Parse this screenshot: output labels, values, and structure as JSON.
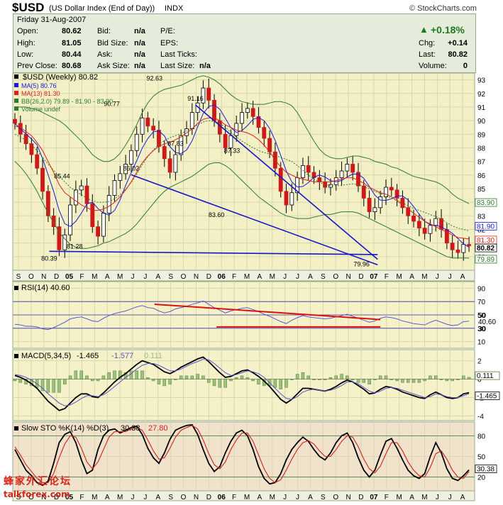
{
  "header": {
    "symbol": "$USD",
    "name": "(US Dollar Index (End of Day))",
    "exchange": "INDX",
    "source": "© StockCharts.com"
  },
  "quote": {
    "date": "Friday   31-Aug-2007",
    "open_label": "Open:",
    "open": "80.62",
    "high_label": "High:",
    "high": "81.05",
    "low_label": "Low:",
    "low": "80.44",
    "prev_label": "Prev Close:",
    "prev": "80.68",
    "bid_label": "Bid:",
    "bid": "n/a",
    "bidsize_label": "Bid Size:",
    "bidsize": "n/a",
    "ask_label": "Ask:",
    "ask": "n/a",
    "asksize_label": "Ask Size:",
    "asksize": "n/a",
    "pe_label": "P/E:",
    "eps_label": "EPS:",
    "lastticks_label": "Last Ticks:",
    "lastsize_label": "Last Size:",
    "lastsize": "n/a",
    "pct": "+0.18%",
    "chg_label": "Chg:",
    "chg": "+0.14",
    "last_label": "Last:",
    "last": "80.82",
    "volume_label": "Volume:",
    "volume": "0"
  },
  "colors": {
    "panel_bg": "#f5f1c8",
    "price_bg": "#f2f0c4",
    "sto_bg": "#f1e2cc",
    "trendline": "#1717c8",
    "resistance": "#e01010",
    "ma5": "#1a1adc",
    "ma13": "#e02020",
    "bb": "#2f7a2f"
  },
  "chart_data": [
    {
      "type": "line",
      "panel": "price",
      "legend": [
        {
          "name": "$USD (Weekly) 80.82",
          "color": "#000000"
        },
        {
          "name": "MA(5) 80.76",
          "color": "#1a1adc"
        },
        {
          "name": "MA(13) 81.30",
          "color": "#e02020"
        },
        {
          "name": "BB(26,2.0) 79.89 - 81.90 - 83.90",
          "color": "#2f7a2f"
        },
        {
          "name": "Volume undef",
          "color": "#2f7a2f"
        }
      ],
      "ylim": [
        79.0,
        93.5
      ],
      "y_ticks": [
        80,
        81,
        82,
        83,
        84,
        85,
        86,
        87,
        88,
        89,
        90,
        91,
        92,
        93
      ],
      "x_ticks": [
        "S",
        "O",
        "N",
        "D",
        "05",
        "F",
        "M",
        "A",
        "M",
        "J",
        "J",
        "A",
        "S",
        "O",
        "N",
        "D",
        "06",
        "F",
        "M",
        "A",
        "M",
        "J",
        "J",
        "A",
        "S",
        "O",
        "N",
        "D",
        "07",
        "F",
        "M",
        "A",
        "M",
        "J",
        "J",
        "A"
      ],
      "annotations": [
        {
          "label": "80.39",
          "t": 6.2,
          "v": 80.39
        },
        {
          "label": "85.44",
          "t": 8.5,
          "v": 85.44
        },
        {
          "label": "81.28",
          "t": 10.8,
          "v": 81.28
        },
        {
          "label": "90.77",
          "t": 17.5,
          "v": 90.77
        },
        {
          "label": "86.02",
          "t": 21.0,
          "v": 86.02
        },
        {
          "label": "92.63",
          "t": 25.2,
          "v": 92.63
        },
        {
          "label": "87.83",
          "t": 29.0,
          "v": 87.83
        },
        {
          "label": "91.16",
          "t": 32.6,
          "v": 91.16
        },
        {
          "label": "83.60",
          "t": 36.4,
          "v": 83.6
        },
        {
          "label": "87.33",
          "t": 39.2,
          "v": 87.33
        },
        {
          "label": "79.96",
          "t": 62.6,
          "v": 79.96
        }
      ],
      "right_labels": [
        "83.90",
        "81.90",
        "81.30",
        "80.82",
        "79.89"
      ],
      "close": [
        89.8,
        89.0,
        88.3,
        87.5,
        86.5,
        84.8,
        83.0,
        82.2,
        80.5,
        81.6,
        83.8,
        84.9,
        85.2,
        83.9,
        82.2,
        81.5,
        83.2,
        84.5,
        85.6,
        86.1,
        86.8,
        87.8,
        89.0,
        90.2,
        89.6,
        89.3,
        88.1,
        87.2,
        86.2,
        87.5,
        88.9,
        89.4,
        90.6,
        91.3,
        92.4,
        91.5,
        90.0,
        89.0,
        88.0,
        88.9,
        89.8,
        90.6,
        90.9,
        90.3,
        89.5,
        88.7,
        87.7,
        86.5,
        84.8,
        83.8,
        84.7,
        85.8,
        86.7,
        86.2,
        85.8,
        85.5,
        85.1,
        85.3,
        85.8,
        86.3,
        86.8,
        86.2,
        85.2,
        84.3,
        83.3,
        83.6,
        84.4,
        85.1,
        84.9,
        84.3,
        83.6,
        83.0,
        82.6,
        82.1,
        81.7,
        82.3,
        82.8,
        82.0,
        81.0,
        80.5,
        80.3,
        80.9,
        80.8
      ],
      "ma13": [
        89.6,
        89.5,
        89.2,
        88.9,
        88.4,
        87.8,
        87.0,
        86.2,
        85.3,
        84.7,
        84.4,
        84.1,
        83.8,
        83.6,
        83.4,
        83.4,
        83.5,
        83.7,
        84.0,
        84.4,
        84.9,
        85.5,
        86.2,
        86.9,
        87.4,
        87.8,
        88.1,
        88.3,
        88.4,
        88.6,
        88.8,
        89.1,
        89.4,
        89.8,
        90.1,
        90.2,
        90.2,
        90.0,
        89.7,
        89.5,
        89.3,
        89.2,
        89.1,
        88.9,
        88.6,
        88.2,
        87.7,
        87.1,
        86.6,
        86.2,
        86.0,
        85.8,
        85.7,
        85.6,
        85.5,
        85.5,
        85.5,
        85.5,
        85.6,
        85.7,
        85.8,
        85.8,
        85.6,
        85.4,
        85.1,
        84.9,
        84.7,
        84.6,
        84.4,
        84.1,
        83.8,
        83.5,
        83.2,
        82.9,
        82.6,
        82.4,
        82.2,
        82.0,
        81.8,
        81.6,
        81.4,
        81.35,
        81.3
      ],
      "bb_upper": [
        91.0,
        91.0,
        91.0,
        90.9,
        90.8,
        90.6,
        90.4,
        90.2,
        90.0,
        89.7,
        89.3,
        88.9,
        88.5,
        88.0,
        87.5,
        87.2,
        87.0,
        87.0,
        87.2,
        87.6,
        88.2,
        88.9,
        89.7,
        90.6,
        91.3,
        91.8,
        92.1,
        92.3,
        92.4,
        92.5,
        92.6,
        92.8,
        93.0,
        93.2,
        93.3,
        93.2,
        93.0,
        92.7,
        92.3,
        91.9,
        91.6,
        91.4,
        91.3,
        91.2,
        91.2,
        91.2,
        91.3,
        91.4,
        91.4,
        91.3,
        91.1,
        90.6,
        89.9,
        89.2,
        88.5,
        87.9,
        87.5,
        87.3,
        87.2,
        87.2,
        87.3,
        87.4,
        87.4,
        87.3,
        87.2,
        87.0,
        86.9,
        86.8,
        86.6,
        86.5,
        86.3,
        86.1,
        85.9,
        85.8,
        85.7,
        85.6,
        85.5,
        85.3,
        85.0,
        84.6,
        84.3,
        84.1,
        83.9
      ],
      "bb_lower": [
        87.0,
        86.6,
        86.1,
        85.5,
        84.8,
        84.0,
        83.2,
        82.5,
        81.8,
        81.3,
        80.9,
        80.7,
        80.6,
        80.6,
        80.7,
        80.8,
        81.0,
        81.1,
        81.3,
        81.5,
        81.7,
        82.0,
        82.4,
        82.9,
        83.4,
        83.9,
        84.4,
        84.8,
        85.1,
        85.3,
        85.5,
        85.7,
        85.9,
        86.2,
        86.5,
        86.8,
        86.9,
        86.9,
        86.7,
        86.4,
        86.0,
        85.6,
        85.2,
        84.8,
        84.4,
        84.1,
        83.8,
        83.5,
        83.2,
        83.0,
        82.9,
        82.8,
        82.8,
        82.8,
        82.9,
        83.0,
        83.1,
        83.1,
        83.2,
        83.3,
        83.3,
        83.3,
        83.2,
        83.0,
        82.8,
        82.6,
        82.4,
        82.2,
        82.0,
        81.8,
        81.6,
        81.4,
        81.2,
        81.0,
        80.8,
        80.6,
        80.4,
        80.2,
        80.0,
        79.9,
        79.9,
        79.9,
        79.89
      ],
      "trendlines": [
        {
          "name": "upper channel",
          "from": [
            32.6,
            91.16
          ],
          "to": [
            65.5,
            79.8
          ]
        },
        {
          "name": "lower channel",
          "from": [
            21.0,
            86.02
          ],
          "to": [
            65.5,
            79.4
          ]
        },
        {
          "name": "support",
          "from": [
            6.2,
            80.39
          ],
          "to": [
            65.5,
            80.15
          ]
        }
      ]
    },
    {
      "type": "line",
      "panel": "rsi",
      "legend": "RSI(14) 40.60",
      "ylim": [
        0,
        100
      ],
      "y_ticks": [
        10,
        30,
        50,
        70,
        90
      ],
      "guides": [
        30,
        50,
        70
      ],
      "right_labels": [
        "50",
        "40.60",
        "30"
      ],
      "values": [
        36,
        35,
        33,
        33,
        32,
        29,
        28,
        31,
        35,
        39,
        44,
        46,
        47,
        44,
        41,
        40,
        45,
        49,
        52,
        54,
        56,
        59,
        62,
        64,
        61,
        60,
        56,
        53,
        55,
        59,
        61,
        63,
        66,
        68,
        71,
        66,
        61,
        57,
        53,
        56,
        58,
        60,
        61,
        58,
        55,
        51,
        48,
        44,
        40,
        37,
        42,
        46,
        49,
        47,
        46,
        45,
        44,
        45,
        47,
        49,
        51,
        48,
        45,
        42,
        39,
        41,
        45,
        47,
        46,
        44,
        41,
        39,
        37,
        36,
        35,
        39,
        42,
        39,
        36,
        34,
        35,
        40,
        40.6
      ],
      "trendlines": [
        {
          "name": "falling resistance",
          "from": [
            25.2,
            66
          ],
          "to": [
            66.0,
            43
          ]
        },
        {
          "name": "support",
          "from": [
            36.4,
            32
          ],
          "to": [
            66.0,
            32
          ]
        }
      ]
    },
    {
      "type": "line",
      "panel": "macd",
      "legend": [
        "MACD(5,34,5)",
        "-1.465",
        "-1.577",
        "0.111"
      ],
      "ylim": [
        -4.5,
        3.2
      ],
      "y_ticks": [
        -4,
        -2,
        0,
        2
      ],
      "right_labels": [
        "0.111",
        "-1.465"
      ],
      "macd": [
        0.4,
        0.2,
        -0.1,
        -0.5,
        -1.0,
        -1.7,
        -2.4,
        -2.9,
        -3.4,
        -3.2,
        -2.6,
        -2.0,
        -1.6,
        -1.6,
        -1.9,
        -2.0,
        -1.5,
        -0.9,
        -0.3,
        0.2,
        0.6,
        1.1,
        1.6,
        2.0,
        1.8,
        1.6,
        1.2,
        0.8,
        0.6,
        0.9,
        1.3,
        1.6,
        1.9,
        2.2,
        2.4,
        1.9,
        1.3,
        0.7,
        0.2,
        0.3,
        0.6,
        0.9,
        1.0,
        0.7,
        0.3,
        -0.2,
        -0.8,
        -1.5,
        -2.2,
        -2.6,
        -2.2,
        -1.6,
        -1.0,
        -1.0,
        -1.1,
        -1.2,
        -1.3,
        -1.1,
        -0.8,
        -0.4,
        -0.1,
        -0.3,
        -0.7,
        -1.1,
        -1.6,
        -1.5,
        -1.1,
        -0.8,
        -0.9,
        -1.1,
        -1.4,
        -1.6,
        -1.8,
        -2.0,
        -2.1,
        -1.7,
        -1.4,
        -1.7,
        -2.0,
        -2.1,
        -2.0,
        -1.6,
        -1.465
      ],
      "signal": [
        0.5,
        0.4,
        0.2,
        -0.1,
        -0.5,
        -1.0,
        -1.6,
        -2.1,
        -2.6,
        -2.9,
        -2.8,
        -2.5,
        -2.1,
        -1.8,
        -1.8,
        -1.9,
        -1.7,
        -1.3,
        -0.8,
        -0.3,
        0.2,
        0.6,
        1.1,
        1.5,
        1.7,
        1.7,
        1.5,
        1.2,
        0.9,
        0.9,
        1.1,
        1.4,
        1.7,
        1.9,
        2.2,
        2.1,
        1.7,
        1.2,
        0.7,
        0.4,
        0.5,
        0.7,
        0.9,
        0.8,
        0.6,
        0.2,
        -0.4,
        -1.0,
        -1.6,
        -2.1,
        -2.2,
        -1.9,
        -1.4,
        -1.2,
        -1.1,
        -1.2,
        -1.3,
        -1.2,
        -1.0,
        -0.7,
        -0.3,
        -0.3,
        -0.5,
        -0.9,
        -1.3,
        -1.5,
        -1.3,
        -1.0,
        -0.9,
        -1.0,
        -1.2,
        -1.4,
        -1.6,
        -1.8,
        -2.0,
        -1.9,
        -1.6,
        -1.7,
        -1.9,
        -2.0,
        -2.0,
        -1.8,
        -1.577
      ]
    },
    {
      "type": "line",
      "panel": "slow_sto",
      "legend": [
        "Slow STO %K(14) %D(3)",
        "30.38",
        "27.80"
      ],
      "ylim": [
        0,
        100
      ],
      "y_ticks": [
        20,
        50,
        80
      ],
      "right_labels": [
        "30.38"
      ],
      "k": [
        60,
        45,
        30,
        22,
        12,
        8,
        14,
        40,
        70,
        82,
        86,
        70,
        45,
        25,
        30,
        60,
        80,
        88,
        90,
        84,
        88,
        92,
        94,
        82,
        62,
        48,
        40,
        55,
        75,
        88,
        92,
        95,
        96,
        82,
        60,
        40,
        28,
        35,
        55,
        72,
        84,
        88,
        80,
        60,
        35,
        18,
        10,
        12,
        25,
        45,
        60,
        70,
        78,
        72,
        60,
        50,
        45,
        55,
        70,
        80,
        84,
        70,
        48,
        30,
        20,
        30,
        52,
        72,
        76,
        62,
        45,
        30,
        22,
        18,
        25,
        50,
        70,
        55,
        32,
        18,
        15,
        22,
        30.38
      ],
      "d": [
        64,
        52,
        38,
        28,
        18,
        12,
        12,
        25,
        48,
        68,
        80,
        78,
        62,
        42,
        32,
        42,
        60,
        78,
        86,
        86,
        86,
        90,
        92,
        88,
        74,
        58,
        46,
        48,
        62,
        78,
        88,
        92,
        95,
        90,
        74,
        54,
        38,
        32,
        42,
        60,
        74,
        84,
        84,
        72,
        52,
        32,
        18,
        12,
        16,
        30,
        46,
        60,
        70,
        73,
        68,
        58,
        50,
        50,
        60,
        72,
        80,
        78,
        64,
        46,
        32,
        26,
        36,
        54,
        70,
        70,
        58,
        42,
        30,
        22,
        20,
        34,
        54,
        58,
        46,
        30,
        20,
        18,
        27.8
      ]
    }
  ],
  "watermark": {
    "title": "蜂家外汇论坛",
    "site": "talkforex.com"
  }
}
